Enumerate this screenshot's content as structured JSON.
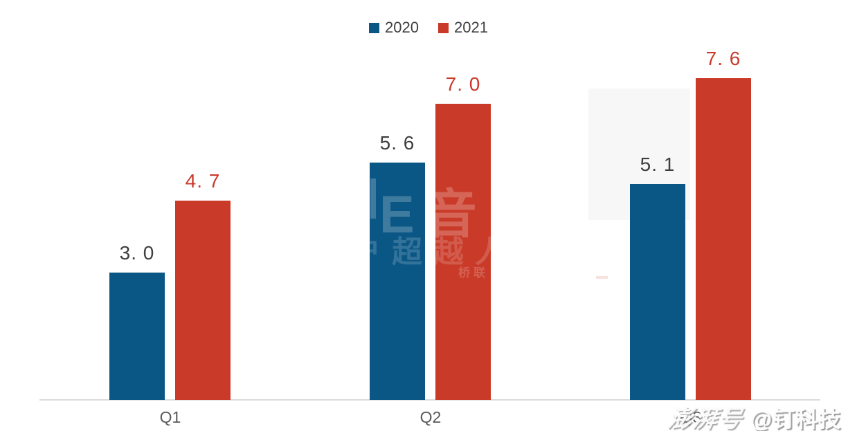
{
  "chart_data": {
    "type": "bar",
    "title": "",
    "xlabel": "",
    "ylabel": "",
    "categories": [
      "Q1",
      "Q2",
      "Q3"
    ],
    "series": [
      {
        "name": "2020",
        "color": "#0A5685",
        "values": [
          3.0,
          5.6,
          5.1
        ],
        "value_labels": [
          "3. 0",
          "5. 6",
          "5. 1"
        ],
        "label_color": "#3E3E3E"
      },
      {
        "name": "2021",
        "color": "#C93A28",
        "values": [
          4.7,
          7.0,
          7.6
        ],
        "value_labels": [
          "4. 7",
          "7. 0",
          "7. 6"
        ],
        "label_color": "#C9392B"
      }
    ],
    "ylim": [
      0,
      8.2
    ],
    "grid": false,
    "legend_position": "top-center",
    "axis_line_color": "#DCDCDC",
    "category_label_color": "#595959",
    "background_color": "#FFFFFF"
  },
  "watermarks": {
    "center": {
      "row1": "E音",
      "row2": "户超越人",
      "row3": "桥联"
    },
    "bottom_right": {
      "brand": "澎湃号",
      "handle": "@钉科技"
    }
  }
}
